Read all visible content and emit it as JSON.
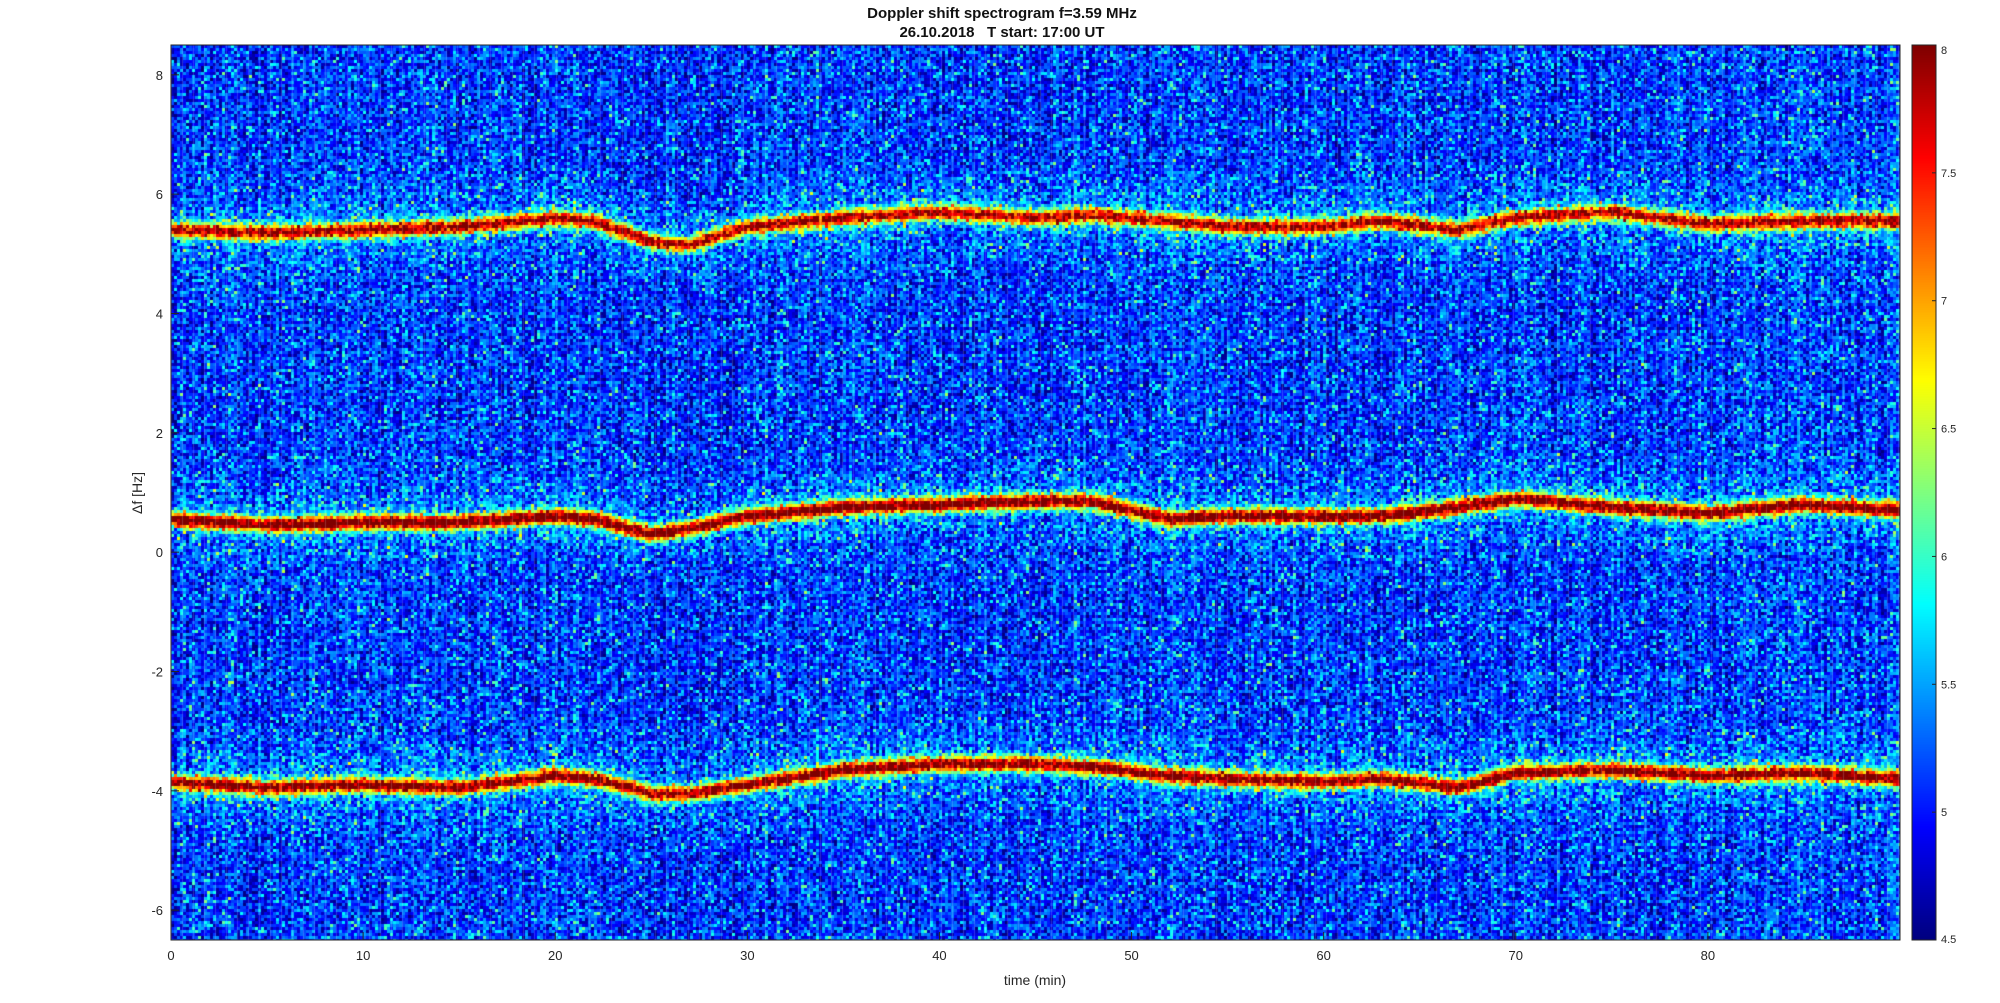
{
  "chart_data": {
    "type": "heatmap",
    "title": "Doppler shift spectrogram f=3.59 MHz",
    "subtitle": "26.10.2018   T start: 17:00 UT",
    "xlabel": "time (min)",
    "ylabel": "Δf [Hz]",
    "xlim": [
      0,
      90
    ],
    "ylim": [
      -6.5,
      8.5
    ],
    "xticks": [
      0,
      10,
      20,
      30,
      40,
      50,
      60,
      70,
      80
    ],
    "yticks": [
      -6,
      -4,
      -2,
      0,
      2,
      4,
      6,
      8
    ],
    "colormap": "jet",
    "clim": [
      4.5,
      8
    ],
    "colorbar_ticks": [
      4.5,
      5,
      5.5,
      6,
      6.5,
      7,
      7.5,
      8
    ],
    "grid": false,
    "background_level": 5.0,
    "series": [
      {
        "time_min": [
          0,
          5,
          10,
          15,
          20,
          22,
          25,
          27,
          30,
          35,
          40,
          45,
          48,
          52,
          55,
          60,
          63,
          67,
          70,
          75,
          80,
          85,
          90
        ],
        "freq_hz": [
          5.4,
          5.35,
          5.4,
          5.45,
          5.6,
          5.55,
          5.2,
          5.15,
          5.45,
          5.6,
          5.7,
          5.6,
          5.65,
          5.55,
          5.45,
          5.45,
          5.55,
          5.4,
          5.6,
          5.7,
          5.5,
          5.55,
          5.55
        ],
        "peak_level": 7.6
      },
      {
        "time_min": [
          0,
          5,
          10,
          15,
          20,
          22,
          25,
          27,
          30,
          35,
          40,
          45,
          48,
          52,
          55,
          60,
          63,
          67,
          70,
          75,
          80,
          85,
          90
        ],
        "freq_hz": [
          0.55,
          0.45,
          0.5,
          0.5,
          0.6,
          0.55,
          0.3,
          0.4,
          0.6,
          0.75,
          0.8,
          0.85,
          0.85,
          0.55,
          0.6,
          0.6,
          0.6,
          0.75,
          0.9,
          0.75,
          0.65,
          0.8,
          0.7
        ],
        "peak_level": 7.9
      },
      {
        "time_min": [
          0,
          5,
          10,
          15,
          20,
          22,
          25,
          27,
          30,
          35,
          40,
          45,
          48,
          52,
          55,
          60,
          63,
          67,
          70,
          75,
          80,
          85,
          90
        ],
        "freq_hz": [
          -3.85,
          -3.95,
          -3.9,
          -3.95,
          -3.75,
          -3.8,
          -4.05,
          -4.05,
          -3.9,
          -3.65,
          -3.55,
          -3.55,
          -3.6,
          -3.75,
          -3.8,
          -3.85,
          -3.8,
          -3.95,
          -3.7,
          -3.65,
          -3.75,
          -3.7,
          -3.8
        ],
        "peak_level": 7.8
      }
    ]
  }
}
